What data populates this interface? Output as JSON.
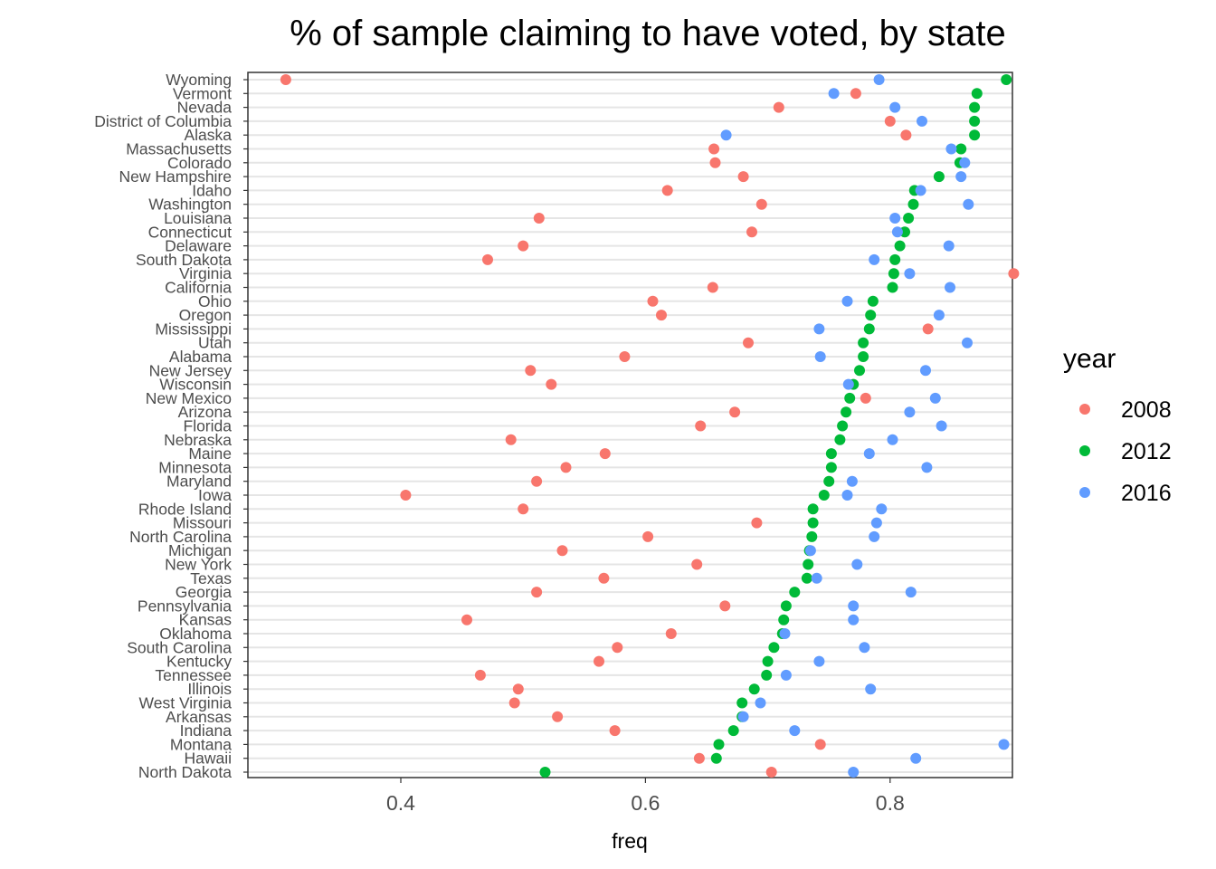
{
  "chart_data": {
    "type": "scatter",
    "title": "% of sample claiming to have voted, by state",
    "xlabel": "freq",
    "ylabel": "",
    "xlim": [
      0.275,
      0.9
    ],
    "xticks": [
      "0.4",
      "0.6",
      "0.8"
    ],
    "xtick_values": [
      0.4,
      0.6,
      0.8
    ],
    "grid": "horizontal",
    "legend": {
      "title": "year",
      "placement": "right"
    },
    "series": [
      {
        "name": "2008",
        "color": "#F8766D"
      },
      {
        "name": "2012",
        "color": "#00BA38"
      },
      {
        "name": "2016",
        "color": "#619CFF"
      }
    ],
    "categories": [
      "Wyoming",
      "Vermont",
      "Nevada",
      "District of Columbia",
      "Alaska",
      "Massachusetts",
      "Colorado",
      "New Hampshire",
      "Idaho",
      "Washington",
      "Louisiana",
      "Connecticut",
      "Delaware",
      "South Dakota",
      "Virginia",
      "California",
      "Ohio",
      "Oregon",
      "Mississippi",
      "Utah",
      "Alabama",
      "New Jersey",
      "Wisconsin",
      "New Mexico",
      "Arizona",
      "Florida",
      "Nebraska",
      "Maine",
      "Minnesota",
      "Maryland",
      "Iowa",
      "Rhode Island",
      "Missouri",
      "North Carolina",
      "Michigan",
      "New York",
      "Texas",
      "Georgia",
      "Pennsylvania",
      "Kansas",
      "Oklahoma",
      "South Carolina",
      "Kentucky",
      "Tennessee",
      "Illinois",
      "West Virginia",
      "Arkansas",
      "Indiana",
      "Montana",
      "Hawaii",
      "North Dakota"
    ],
    "values": {
      "2008": [
        0.306,
        0.772,
        0.709,
        0.8,
        0.813,
        0.656,
        0.657,
        0.68,
        0.618,
        0.695,
        0.513,
        0.687,
        0.5,
        0.471,
        0.901,
        0.655,
        0.606,
        0.613,
        0.831,
        0.684,
        0.583,
        0.506,
        0.523,
        0.78,
        0.673,
        0.645,
        0.49,
        0.567,
        0.535,
        0.511,
        0.404,
        0.5,
        0.691,
        0.602,
        0.532,
        0.642,
        0.566,
        0.511,
        0.665,
        0.454,
        0.621,
        0.577,
        0.562,
        0.465,
        0.496,
        0.493,
        0.528,
        0.575,
        0.743,
        0.644,
        0.703
      ],
      "2012": [
        0.895,
        0.871,
        0.869,
        0.869,
        0.869,
        0.858,
        0.857,
        0.84,
        0.82,
        0.819,
        0.815,
        0.812,
        0.808,
        0.804,
        0.803,
        0.802,
        0.786,
        0.784,
        0.783,
        0.778,
        0.778,
        0.775,
        0.77,
        0.767,
        0.764,
        0.761,
        0.759,
        0.752,
        0.752,
        0.75,
        0.746,
        0.737,
        0.737,
        0.736,
        0.734,
        0.733,
        0.732,
        0.722,
        0.715,
        0.713,
        0.712,
        0.705,
        0.7,
        0.699,
        0.689,
        0.679,
        0.679,
        0.672,
        0.66,
        0.658,
        0.518
      ],
      "2016": [
        0.791,
        0.754,
        0.804,
        0.826,
        0.666,
        0.85,
        0.861,
        0.858,
        0.825,
        0.864,
        0.804,
        0.806,
        0.848,
        0.787,
        0.816,
        0.849,
        0.765,
        0.84,
        0.742,
        0.863,
        0.743,
        0.829,
        0.766,
        0.837,
        0.816,
        0.842,
        0.802,
        0.783,
        0.83,
        0.769,
        0.765,
        0.793,
        0.789,
        0.787,
        0.735,
        0.773,
        0.74,
        0.817,
        0.77,
        0.77,
        0.714,
        0.779,
        0.742,
        0.715,
        0.784,
        0.694,
        0.68,
        0.722,
        0.893,
        0.821,
        0.77
      ]
    }
  }
}
